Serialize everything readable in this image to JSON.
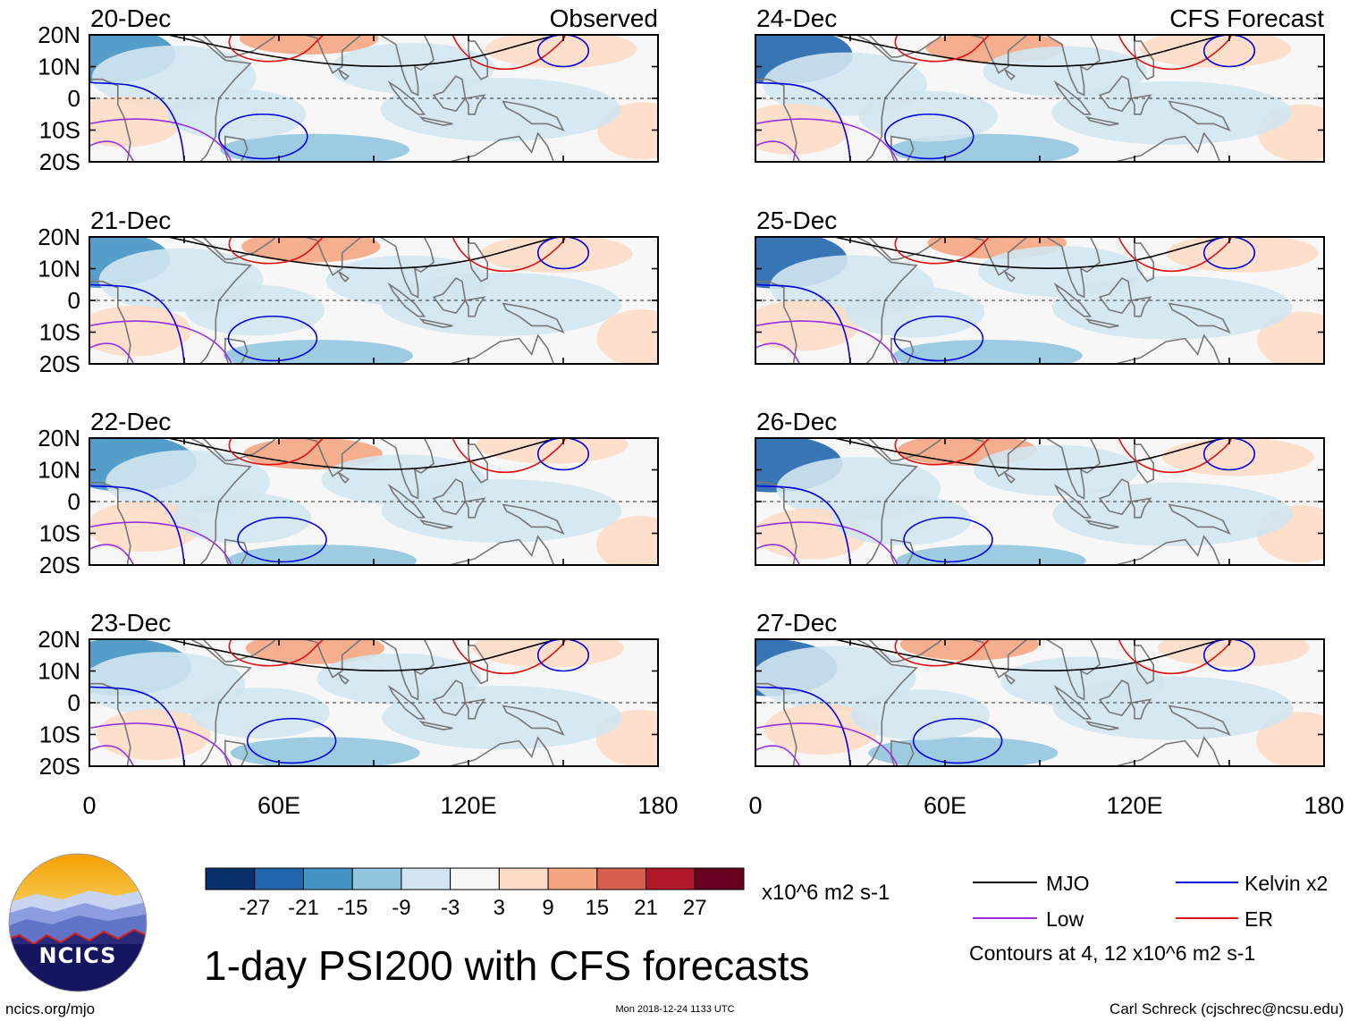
{
  "chart_data": {
    "type": "heatmap",
    "title": "1-day PSI200 with CFS forecasts",
    "columns": [
      {
        "label": "Observed",
        "dates": [
          "20-Dec",
          "21-Dec",
          "22-Dec",
          "23-Dec"
        ]
      },
      {
        "label": "CFS Forecast",
        "dates": [
          "24-Dec",
          "25-Dec",
          "26-Dec",
          "27-Dec"
        ]
      }
    ],
    "y_ticks": [
      "20N",
      "10N",
      "0",
      "10S",
      "20S"
    ],
    "x_ticks": [
      "0",
      "60E",
      "120E",
      "180"
    ],
    "xlim": [
      0,
      180
    ],
    "ylim": [
      -20,
      20
    ],
    "colorbar": {
      "levels": [
        "-27",
        "-21",
        "-15",
        "-9",
        "-3",
        "3",
        "9",
        "15",
        "21",
        "27"
      ],
      "colors": [
        "#08306b",
        "#2166ac",
        "#4393c3",
        "#92c5de",
        "#d1e5f0",
        "#f7f7f7",
        "#fddbc7",
        "#f4a582",
        "#d6604d",
        "#b2182b",
        "#67001f"
      ],
      "units": "x10^6 m2 s-1"
    },
    "legend": [
      {
        "name": "MJO",
        "color": "#000000"
      },
      {
        "name": "Kelvin x2",
        "color": "#0000e0"
      },
      {
        "name": "Low",
        "color": "#9a30e0"
      },
      {
        "name": "ER",
        "color": "#e01010"
      }
    ],
    "contour_note": "Contours at 4, 12 x10^6 m2 s-1"
  },
  "footer": {
    "site": "ncics.org/mjo",
    "timestamp": "Mon 2018-12-24 1133 UTC",
    "author": "Carl Schreck (cjschrec@ncsu.edu)"
  },
  "logo": {
    "text": "NCICS"
  }
}
